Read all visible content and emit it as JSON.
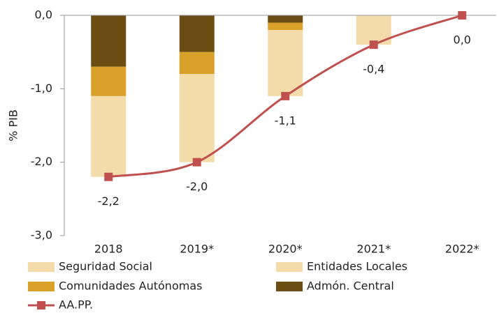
{
  "chart_data": {
    "type": "bar",
    "y_label": "% PIB",
    "categories": [
      "2018",
      "2019*",
      "2020*",
      "2021*",
      "2022*"
    ],
    "series": [
      {
        "name": "Seguridad Social",
        "color": "#f3dcaa",
        "values": [
          -1.1,
          -1.2,
          -0.9,
          -0.4,
          0.0
        ]
      },
      {
        "name": "Entidades Locales",
        "color": "#f3dcaa",
        "values": [
          0.0,
          0.0,
          0.0,
          0.0,
          0.0
        ]
      },
      {
        "name": "Comunidades Autónomas",
        "color": "#d9a02a",
        "values": [
          -0.4,
          -0.3,
          -0.1,
          0.0,
          0.0
        ]
      },
      {
        "name": "Admón. Central",
        "color": "#6b4c13",
        "values": [
          -0.7,
          -0.5,
          -0.1,
          0.0,
          0.0
        ]
      },
      {
        "name": "AA.PP.",
        "type": "line",
        "color": "#c0504d",
        "values": [
          -2.2,
          -2.0,
          -1.1,
          -0.4,
          0.0
        ],
        "value_labels": [
          "-2,2",
          "-2,0",
          "-1,1",
          "-0,4",
          "0,0"
        ]
      }
    ],
    "ylim": [
      -3.0,
      0.0
    ],
    "yticks": [
      {
        "value": 0.0,
        "label": "0,0"
      },
      {
        "value": -1.0,
        "label": "-1,0"
      },
      {
        "value": -2.0,
        "label": "-2,0"
      },
      {
        "value": -3.0,
        "label": "-3,0"
      }
    ]
  }
}
